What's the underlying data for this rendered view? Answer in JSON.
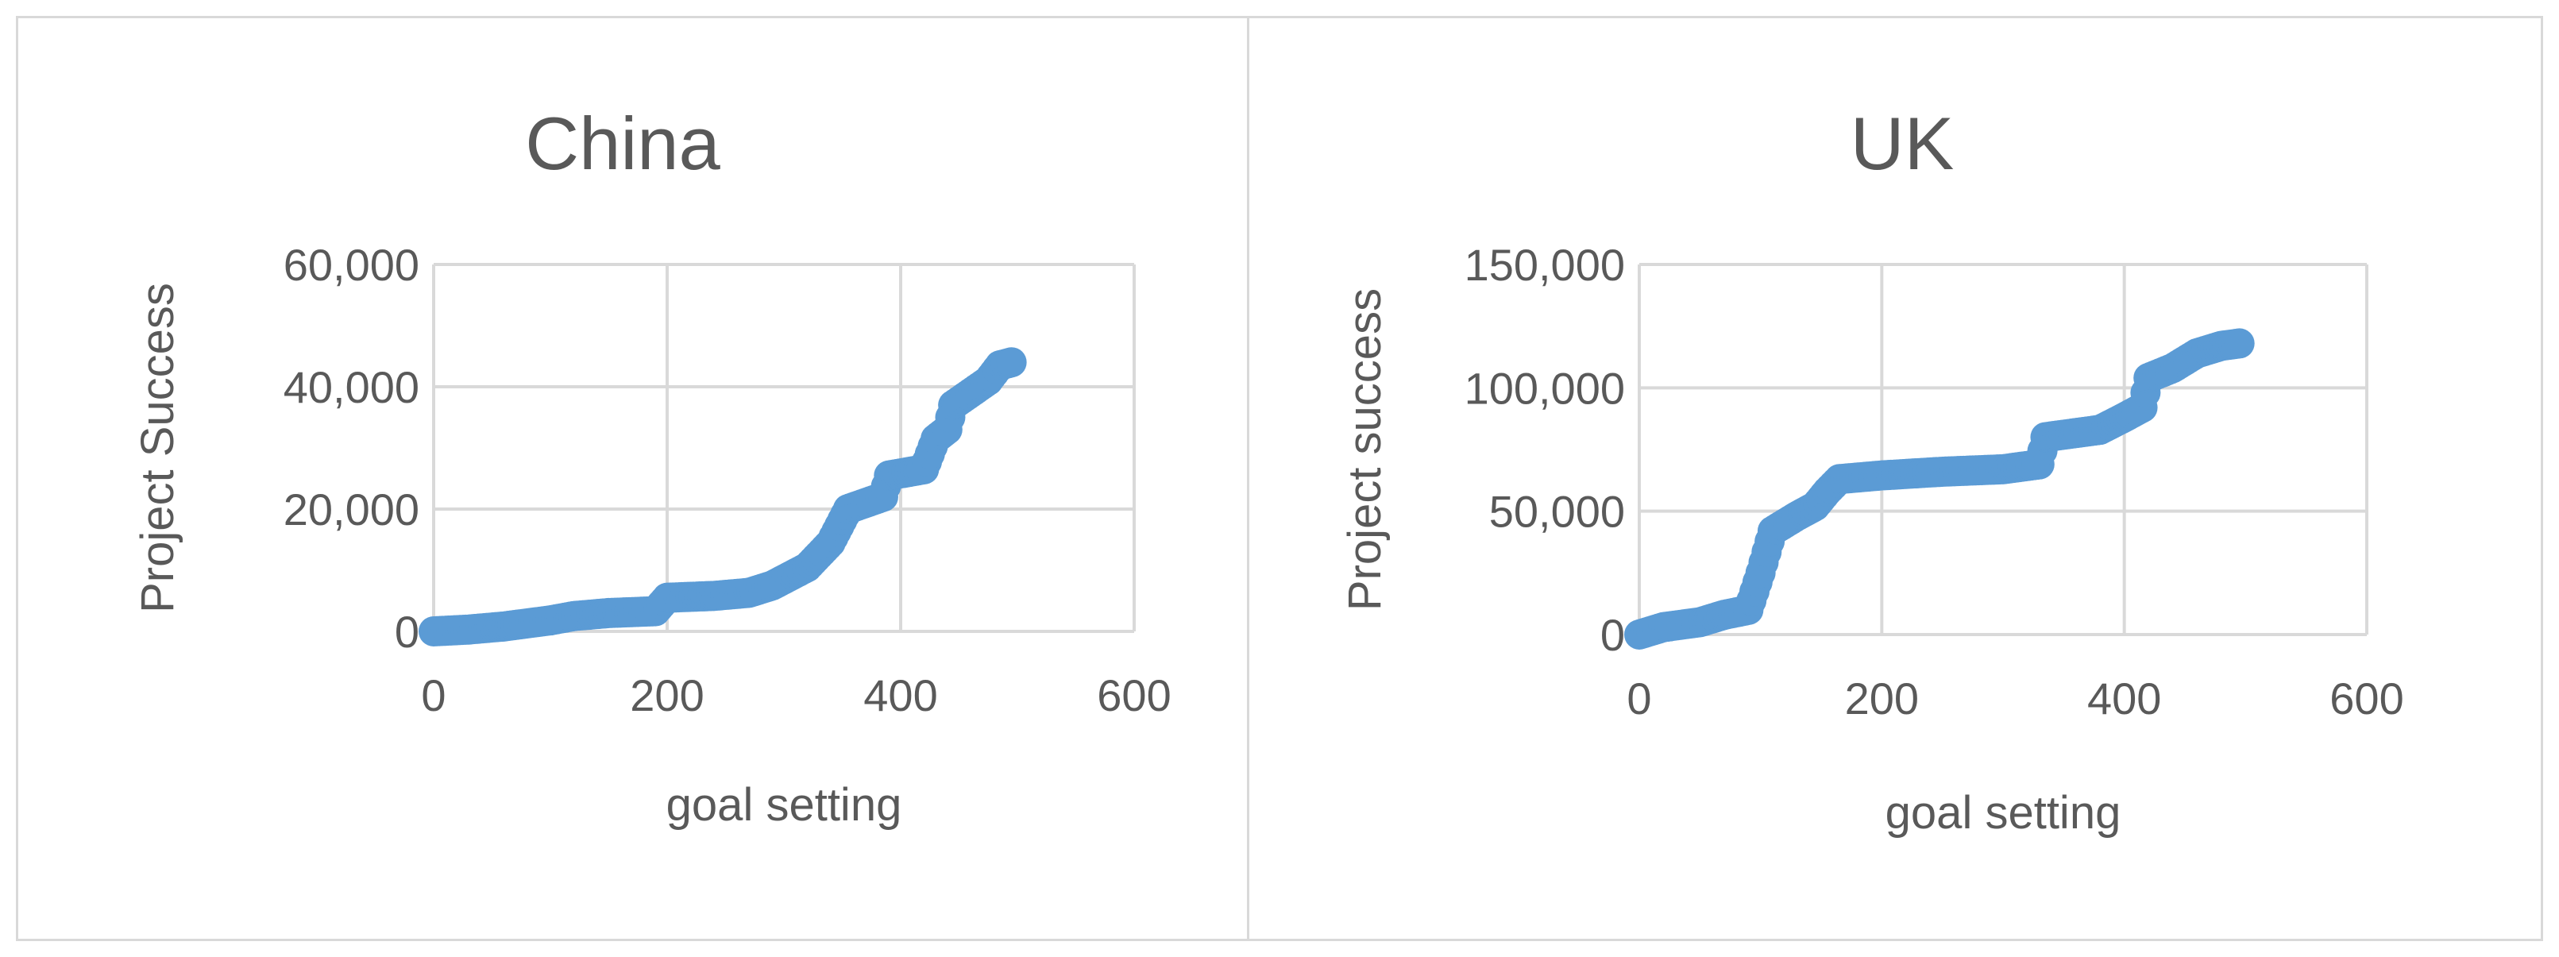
{
  "chart_data": [
    {
      "type": "scatter",
      "title": "China",
      "xlabel": "goal setting",
      "ylabel": "Project Success",
      "xlim": [
        0,
        600
      ],
      "ylim": [
        0,
        60000
      ],
      "xticks": [
        "0",
        "200",
        "400",
        "600"
      ],
      "yticks": [
        "0",
        "20,000",
        "40,000",
        "60,000"
      ],
      "grid": true,
      "marker_color": "#5B9BD5",
      "keypoints": [
        [
          0,
          0
        ],
        [
          30,
          300
        ],
        [
          60,
          800
        ],
        [
          80,
          1300
        ],
        [
          100,
          1800
        ],
        [
          120,
          2500
        ],
        [
          150,
          3000
        ],
        [
          190,
          3300
        ],
        [
          200,
          5500
        ],
        [
          240,
          5800
        ],
        [
          270,
          6300
        ],
        [
          290,
          7500
        ],
        [
          320,
          10500
        ],
        [
          340,
          14500
        ],
        [
          355,
          20000
        ],
        [
          370,
          21000
        ],
        [
          385,
          22000
        ],
        [
          390,
          25500
        ],
        [
          420,
          26500
        ],
        [
          430,
          31500
        ],
        [
          440,
          33000
        ],
        [
          445,
          37000
        ],
        [
          460,
          39000
        ],
        [
          475,
          41000
        ],
        [
          485,
          43500
        ],
        [
          495,
          44000
        ]
      ]
    },
    {
      "type": "scatter",
      "title": "UK",
      "xlabel": "goal setting",
      "ylabel": "Project success",
      "xlim": [
        0,
        600
      ],
      "ylim": [
        0,
        150000
      ],
      "xticks": [
        "0",
        "200",
        "400",
        "600"
      ],
      "yticks": [
        "0",
        "50,000",
        "100,000",
        "150,000"
      ],
      "grid": true,
      "marker_color": "#5B9BD5",
      "keypoints": [
        [
          0,
          0
        ],
        [
          20,
          3000
        ],
        [
          50,
          5000
        ],
        [
          70,
          8000
        ],
        [
          90,
          10000
        ],
        [
          100,
          25000
        ],
        [
          110,
          42000
        ],
        [
          130,
          48000
        ],
        [
          145,
          52000
        ],
        [
          155,
          58000
        ],
        [
          165,
          63000
        ],
        [
          200,
          64500
        ],
        [
          250,
          66000
        ],
        [
          300,
          67000
        ],
        [
          330,
          69000
        ],
        [
          335,
          80000
        ],
        [
          380,
          83000
        ],
        [
          400,
          88000
        ],
        [
          415,
          92000
        ],
        [
          420,
          104000
        ],
        [
          440,
          108000
        ],
        [
          460,
          114000
        ],
        [
          480,
          117000
        ],
        [
          495,
          118000
        ]
      ]
    }
  ]
}
